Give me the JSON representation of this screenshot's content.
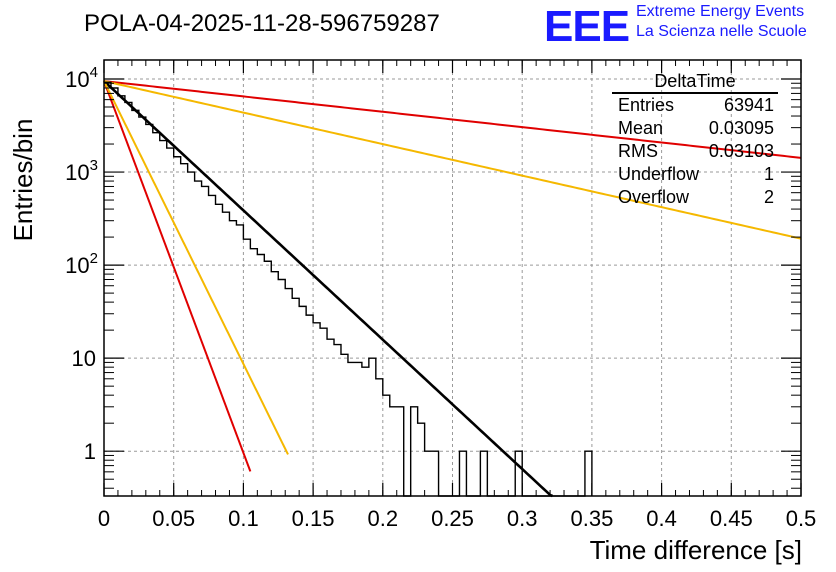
{
  "header": {
    "run_title": "POLA-04-2025-11-28-596759287",
    "logo_text": "EEE",
    "org_line1": "Extreme Energy Events",
    "org_line2": "La Scienza nelle Scuole"
  },
  "stats": {
    "title": "DeltaTime",
    "rows": [
      {
        "label": "Entries",
        "value": "63941"
      },
      {
        "label": "Mean",
        "value": "0.03095"
      },
      {
        "label": "RMS",
        "value": "0.03103"
      },
      {
        "label": "Underflow",
        "value": "1"
      },
      {
        "label": "Overflow",
        "value": "2"
      }
    ]
  },
  "chart_data": {
    "type": "histogram",
    "title": "POLA-04-2025-11-28-596759287",
    "xlabel": "Time difference [s]",
    "ylabel": "Entries/bin",
    "xlim": [
      0,
      0.5
    ],
    "ylim": [
      0.33,
      16000
    ],
    "yscale": "log",
    "grid": true,
    "x_ticks": [
      "0",
      "0.05",
      "0.1",
      "0.15",
      "0.2",
      "0.25",
      "0.3",
      "0.35",
      "0.4",
      "0.45",
      "0.5"
    ],
    "x_tick_values": [
      0,
      0.05,
      0.1,
      0.15,
      0.2,
      0.25,
      0.3,
      0.35,
      0.4,
      0.45,
      0.5
    ],
    "y_ticks": [
      {
        "value": 1,
        "base": "1",
        "exp": ""
      },
      {
        "value": 10,
        "base": "10",
        "exp": ""
      },
      {
        "value": 100,
        "base": "10",
        "exp": "2"
      },
      {
        "value": 1000,
        "base": "10",
        "exp": "3"
      },
      {
        "value": 10000,
        "base": "10",
        "exp": "4"
      }
    ],
    "histogram": {
      "bin_width": 0.005,
      "bin_start": 0,
      "counts": [
        9200,
        8000,
        6600,
        5600,
        4600,
        3900,
        3250,
        2650,
        2180,
        1810,
        1460,
        1230,
        1000,
        800,
        700,
        560,
        450,
        370,
        300,
        270,
        190,
        150,
        130,
        110,
        85,
        70,
        56,
        44,
        36,
        29,
        24,
        21,
        16,
        14,
        11,
        9,
        9,
        8,
        10,
        6,
        4,
        3,
        3,
        0,
        3,
        2,
        1,
        1,
        0,
        0,
        0,
        1,
        0,
        0,
        1,
        0,
        0,
        0,
        0,
        1,
        0,
        0,
        0,
        0,
        0,
        0,
        0,
        0,
        0,
        1
      ]
    },
    "series": [
      {
        "name": "fit",
        "color": "#000000",
        "amplitude": 9500,
        "slope": -32.0,
        "x_end": 0.325
      },
      {
        "name": "red-steep",
        "color": "#e00000",
        "amplitude": 9500,
        "slope": -92.0,
        "x_end": 0.105
      },
      {
        "name": "orange-steep",
        "color": "#f5b800",
        "amplitude": 9500,
        "slope": -70.0,
        "x_end": 0.132
      },
      {
        "name": "red-shallow",
        "color": "#e00000",
        "amplitude": 9500,
        "slope": -3.8,
        "x_end": 0.5
      },
      {
        "name": "orange-shallow",
        "color": "#f5b800",
        "amplitude": 9500,
        "slope": -7.8,
        "x_end": 0.5
      }
    ]
  }
}
